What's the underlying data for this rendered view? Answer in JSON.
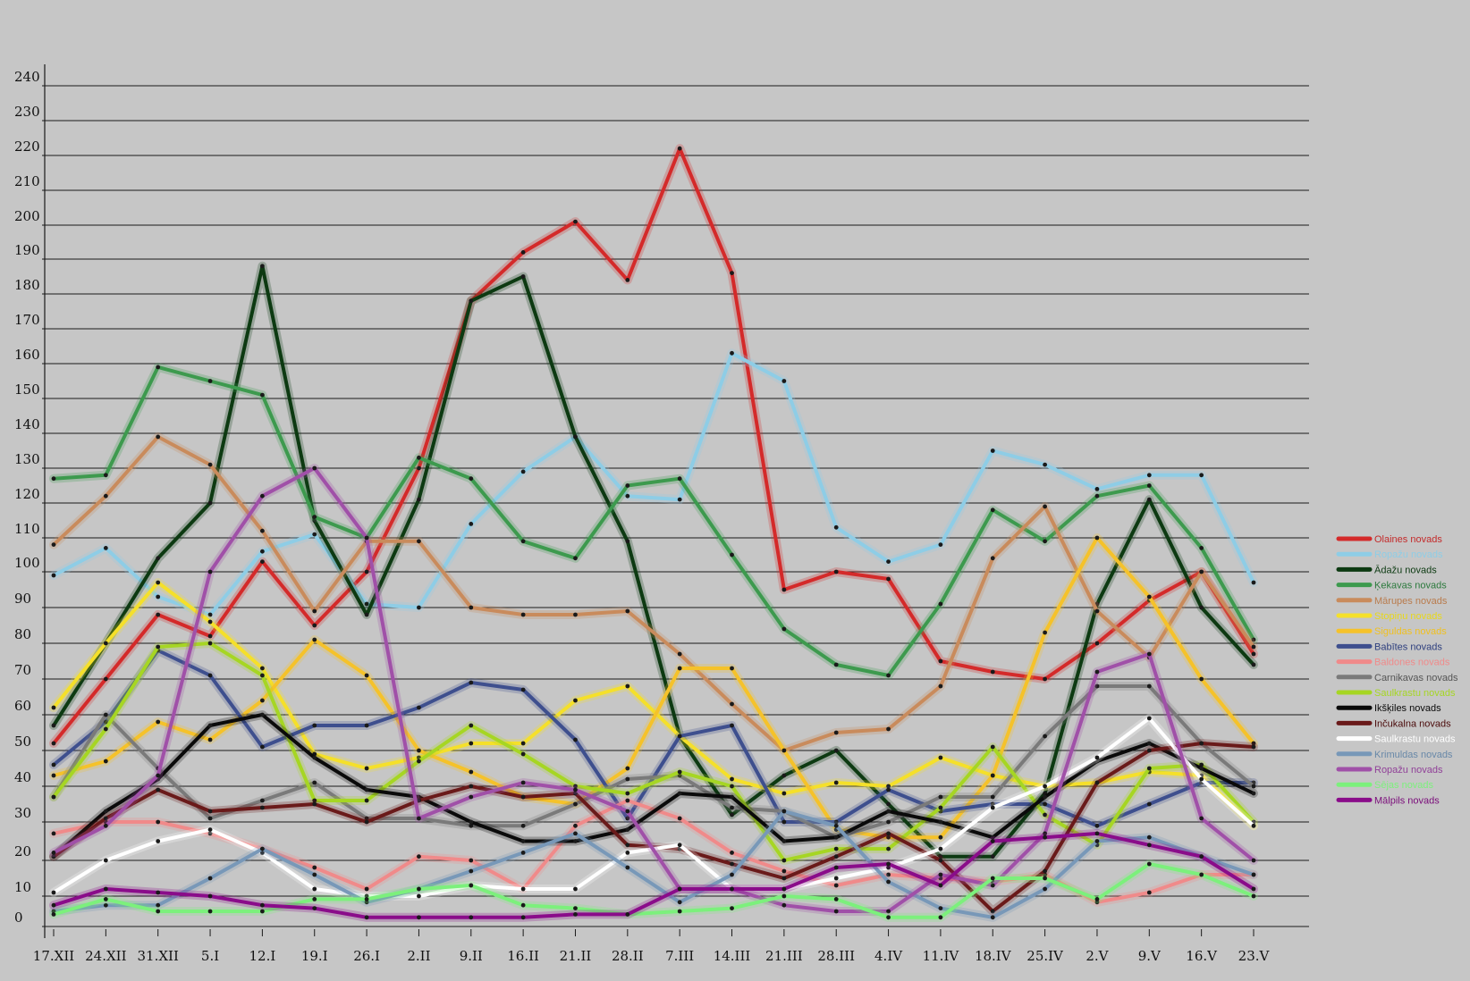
{
  "chart_data": {
    "type": "line",
    "title": "",
    "xlabel": "",
    "ylabel": "",
    "ylim": [
      0,
      240
    ],
    "y_ticks": [
      0,
      10,
      20,
      30,
      40,
      50,
      60,
      70,
      80,
      90,
      100,
      110,
      120,
      130,
      140,
      150,
      160,
      170,
      180,
      190,
      200,
      210,
      220,
      230,
      240
    ],
    "x": [
      "17.XII",
      "24.XII",
      "31.XII",
      "5.I",
      "12.I",
      "19.I",
      "26.I",
      "2.II",
      "9.II",
      "16.II",
      "21.II",
      "28.II",
      "7.III",
      "14.III",
      "21.III",
      "28.III",
      "4.IV",
      "11.IV",
      "18.IV",
      "25.IV",
      "2.V",
      "9.V",
      "16.V",
      "23.V"
    ],
    "grid": true,
    "legend_position": "right",
    "series": [
      {
        "name": "Olaines novads",
        "color": "#d42a2a",
        "values": [
          52,
          70,
          88,
          82,
          103,
          85,
          100,
          130,
          178,
          192,
          201,
          184,
          222,
          186,
          95,
          100,
          98,
          75,
          72,
          70,
          80,
          92,
          100,
          77
        ]
      },
      {
        "name": "Ropažu novads",
        "color": "#8ecde6",
        "values": [
          99,
          107,
          93,
          88,
          106,
          111,
          91,
          90,
          114,
          129,
          139,
          122,
          121,
          163,
          155,
          113,
          103,
          108,
          135,
          131,
          124,
          128,
          128,
          97
        ]
      },
      {
        "name": "Ādažu novads",
        "color": "#0d3a12",
        "values": [
          57,
          80,
          104,
          120,
          188,
          115,
          88,
          121,
          178,
          185,
          139,
          109,
          54,
          32,
          43,
          50,
          35,
          21,
          21,
          38,
          91,
          121,
          90,
          74
        ]
      },
      {
        "name": "Ķekavas novads",
        "color": "#3d9a4e",
        "values": [
          127,
          128,
          159,
          155,
          151,
          116,
          110,
          133,
          127,
          109,
          104,
          125,
          127,
          105,
          84,
          74,
          71,
          91,
          118,
          109,
          122,
          125,
          107,
          81
        ]
      },
      {
        "name": "Mārupes novads",
        "color": "#c98b5c",
        "values": [
          108,
          122,
          139,
          131,
          112,
          89,
          109,
          109,
          90,
          88,
          88,
          89,
          77,
          63,
          50,
          55,
          56,
          68,
          104,
          119,
          89,
          76,
          100,
          79
        ]
      },
      {
        "name": "Stopiņu novads",
        "color": "#f5e02a",
        "values": [
          62,
          80,
          97,
          86,
          73,
          49,
          45,
          48,
          52,
          52,
          64,
          68,
          54,
          42,
          38,
          41,
          40,
          48,
          43,
          40,
          41,
          44,
          43,
          29
        ]
      },
      {
        "name": "Siguldas novads",
        "color": "#f5c22a",
        "values": [
          43,
          47,
          58,
          53,
          64,
          81,
          71,
          50,
          44,
          37,
          35,
          45,
          73,
          73,
          50,
          28,
          26,
          26,
          43,
          83,
          110,
          93,
          70,
          52
        ]
      },
      {
        "name": "Babītes novads",
        "color": "#3e4f8e",
        "values": [
          46,
          58,
          78,
          71,
          51,
          57,
          57,
          62,
          69,
          67,
          53,
          31,
          54,
          57,
          30,
          30,
          39,
          33,
          35,
          35,
          29,
          35,
          41,
          41
        ]
      },
      {
        "name": "Baldones novads",
        "color": "#f08a8a",
        "values": [
          27,
          30,
          30,
          27,
          23,
          18,
          12,
          21,
          20,
          12,
          29,
          36,
          31,
          22,
          17,
          13,
          16,
          15,
          14,
          16,
          8,
          11,
          16,
          16
        ]
      },
      {
        "name": "Carnikavas novads",
        "color": "#7a7a7a",
        "values": [
          37,
          60,
          45,
          31,
          36,
          41,
          31,
          31,
          29,
          29,
          35,
          42,
          43,
          34,
          33,
          26,
          30,
          37,
          37,
          54,
          68,
          68,
          52,
          40
        ]
      },
      {
        "name": "Saulkrastu novads",
        "color": "#a6d623",
        "values": [
          37,
          56,
          79,
          80,
          71,
          36,
          36,
          47,
          57,
          49,
          40,
          38,
          44,
          40,
          20,
          23,
          23,
          34,
          51,
          32,
          24,
          45,
          46,
          30
        ]
      },
      {
        "name": "Ikšķiles novads",
        "color": "#0a0a0a",
        "values": [
          21,
          33,
          42,
          57,
          60,
          48,
          39,
          37,
          30,
          25,
          25,
          28,
          38,
          37,
          25,
          26,
          33,
          30,
          26,
          37,
          47,
          52,
          45,
          38
        ]
      },
      {
        "name": "Inčukalna novads",
        "color": "#6a1a1a",
        "values": [
          21,
          31,
          39,
          33,
          34,
          35,
          30,
          36,
          40,
          37,
          38,
          24,
          23,
          19,
          15,
          21,
          27,
          20,
          5,
          17,
          41,
          50,
          52,
          51
        ]
      },
      {
        "name": "Saulkrastu novads",
        "color": "#ffffff",
        "values": [
          11,
          20,
          25,
          28,
          22,
          12,
          10,
          10,
          13,
          12,
          12,
          22,
          24,
          12,
          12,
          15,
          18,
          23,
          34,
          40,
          48,
          59,
          42,
          29
        ]
      },
      {
        "name": "Krimuldas novads",
        "color": "#7898b8",
        "values": [
          5,
          7,
          7,
          15,
          23,
          16,
          8,
          12,
          17,
          22,
          27,
          18,
          8,
          16,
          33,
          29,
          14,
          6,
          3,
          12,
          25,
          26,
          21,
          16
        ]
      },
      {
        "name": "Ropažu novads",
        "color": "#a050a8",
        "values": [
          22,
          29,
          43,
          100,
          122,
          130,
          110,
          31,
          37,
          41,
          39,
          33,
          12,
          12,
          7,
          5,
          5,
          16,
          13,
          27,
          72,
          77,
          31,
          20
        ]
      },
      {
        "name": "Sējas novads",
        "color": "#7cf07c",
        "values": [
          4,
          9,
          5,
          5,
          5,
          9,
          9,
          12,
          13,
          7,
          6,
          4,
          5,
          6,
          10,
          9,
          3,
          3,
          15,
          15,
          9,
          19,
          16,
          10
        ]
      },
      {
        "name": "Mālpils novads",
        "color": "#8a0c8a",
        "values": [
          7,
          12,
          11,
          10,
          7,
          6,
          3,
          3,
          3,
          3,
          4,
          4,
          12,
          12,
          12,
          18,
          19,
          13,
          25,
          26,
          27,
          24,
          21,
          12
        ]
      }
    ]
  },
  "legend": {
    "items": [
      {
        "label": "Olaines novads",
        "color": "#d42a2a",
        "text_color": "#c42a2a"
      },
      {
        "label": "Ropažu novads",
        "color": "#8ecde6",
        "text_color": "#8ecde6"
      },
      {
        "label": "Ādažu novads",
        "color": "#0d3a12",
        "text_color": "#0d3a12"
      },
      {
        "label": "Ķekavas novads",
        "color": "#3d9a4e",
        "text_color": "#2d7a3e"
      },
      {
        "label": "Mārupes novads",
        "color": "#c98b5c",
        "text_color": "#b97b4c"
      },
      {
        "label": "Stopiņu novads",
        "color": "#f5e02a",
        "text_color": "#e8d81a"
      },
      {
        "label": "Siguldas novads",
        "color": "#f5c22a",
        "text_color": "#f0c020"
      },
      {
        "label": "Babītes novads",
        "color": "#3e4f8e",
        "text_color": "#2e3f7e"
      },
      {
        "label": "Baldones novads",
        "color": "#f08a8a",
        "text_color": "#f08a8a"
      },
      {
        "label": "Carnikavas novads",
        "color": "#7a7a7a",
        "text_color": "#555555"
      },
      {
        "label": "Saulkrastu novads",
        "color": "#a6d623",
        "text_color": "#a6d623"
      },
      {
        "label": "Ikšķiles novads",
        "color": "#0a0a0a",
        "text_color": "#0a0a0a"
      },
      {
        "label": "Inčukalna novads",
        "color": "#6a1a1a",
        "text_color": "#4a0a0a"
      },
      {
        "label": "Saulkrastu novads",
        "color": "#ffffff",
        "text_color": "#ffffff"
      },
      {
        "label": "Krimuldas novads",
        "color": "#7898b8",
        "text_color": "#6888a8"
      },
      {
        "label": "Ropažu novads",
        "color": "#a050a8",
        "text_color": "#904098"
      },
      {
        "label": "Sējas novads",
        "color": "#7cf07c",
        "text_color": "#7cf07c"
      },
      {
        "label": "Mālpils novads",
        "color": "#8a0c8a",
        "text_color": "#7a0c7a"
      }
    ]
  }
}
